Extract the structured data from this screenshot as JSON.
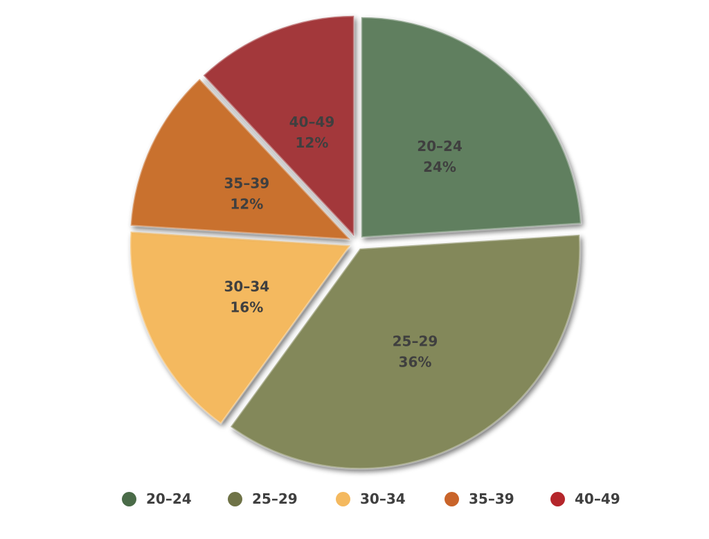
{
  "chart_data": {
    "type": "pie",
    "title": "",
    "categories": [
      "20–24",
      "25–29",
      "30–34",
      "35–39",
      "40–49"
    ],
    "values": [
      24,
      36,
      16,
      12,
      12
    ],
    "value_labels": [
      "24%",
      "36%",
      "16%",
      "12%",
      "12%"
    ],
    "colors": [
      "#617f5f",
      "#83885a",
      "#f4b95f",
      "#c9712d",
      "#a3373a"
    ],
    "legend_colors": [
      "#4a6b48",
      "#6f7347",
      "#f4b95f",
      "#c9642a",
      "#b5262b"
    ],
    "legend_position": "bottom",
    "exploded": true,
    "start": "top, clockwise"
  }
}
